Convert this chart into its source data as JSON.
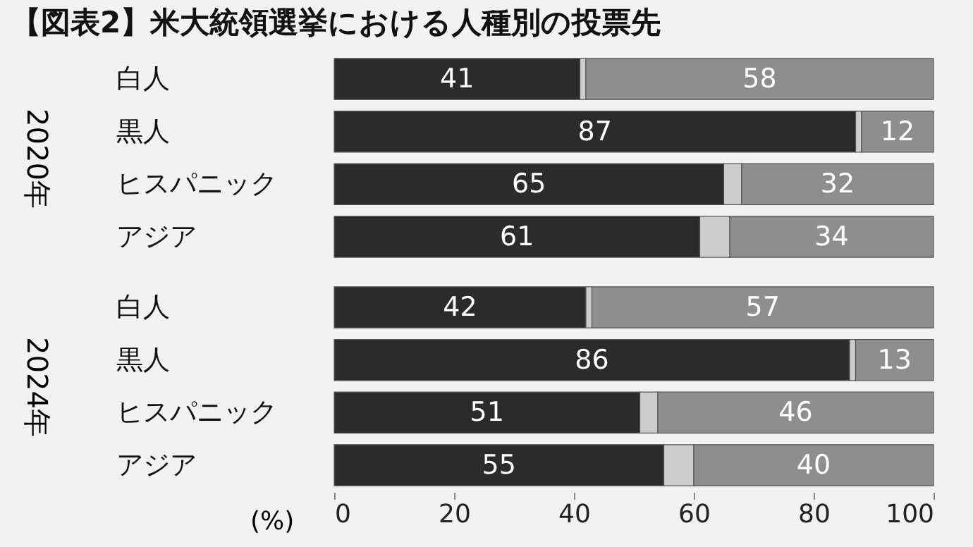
{
  "chart_data": [
    {
      "type": "bar",
      "orientation": "horizontal",
      "stacked": true,
      "title": "【図表2】米大統領選挙における人種別の投票先",
      "ylabel": "2020年",
      "categories": [
        "白人",
        "黒人",
        "ヒスパニック",
        "アジア"
      ],
      "xlim": [
        0,
        100
      ],
      "xticks": [
        0,
        20,
        40,
        60,
        80,
        100
      ],
      "tick_labels": "y",
      "grid": false,
      "legend": false,
      "series": [
        {
          "color": "#2b2b2b",
          "values": [
            41,
            87,
            65,
            61
          ],
          "value_labels": [
            "41",
            "87",
            "65",
            "61"
          ]
        },
        {
          "color": "#cdcdcd",
          "values": [
            1,
            1,
            3,
            5
          ]
        },
        {
          "color": "#8e8e8e",
          "values": [
            58,
            12,
            32,
            34
          ],
          "value_labels": [
            "58",
            "12",
            "32",
            "34"
          ]
        }
      ]
    },
    {
      "type": "bar",
      "orientation": "horizontal",
      "stacked": true,
      "ylabel": "2024年",
      "xlabel": "(%)",
      "categories": [
        "白人",
        "黒人",
        "ヒスパニック",
        "アジア"
      ],
      "xlim": [
        0,
        100
      ],
      "xticks": [
        0,
        20,
        40,
        60,
        80,
        100
      ],
      "grid": false,
      "legend": false,
      "series": [
        {
          "color": "#2b2b2b",
          "values": [
            42,
            86,
            51,
            55
          ],
          "value_labels": [
            "42",
            "86",
            "51",
            "55"
          ]
        },
        {
          "color": "#cdcdcd",
          "values": [
            1,
            1,
            3,
            5
          ]
        },
        {
          "color": "#8e8e8e",
          "values": [
            57,
            13,
            46,
            40
          ],
          "value_labels": [
            "57",
            "13",
            "46",
            "40"
          ]
        }
      ]
    }
  ]
}
